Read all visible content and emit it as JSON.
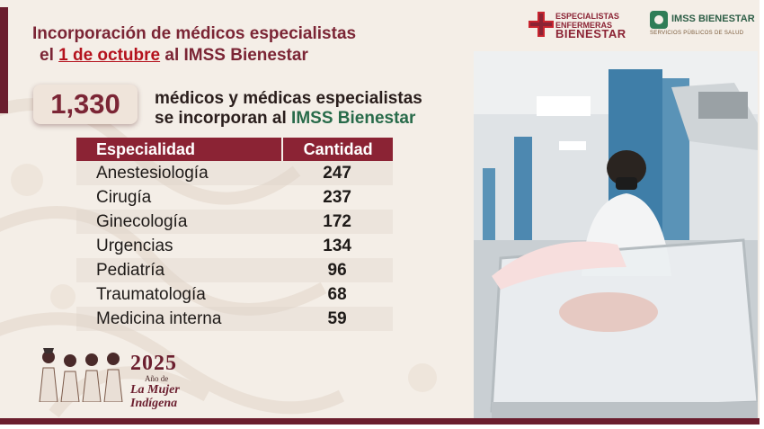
{
  "header": {
    "title_line1": "Incorporación de médicos especialistas",
    "title_line2_prefix": "el ",
    "title_line2_date": "1 de octubre",
    "title_line2_suffix": " al IMSS Bienestar"
  },
  "summary": {
    "count": "1,330",
    "text_line1": "médicos y médicas especialistas",
    "text_line2_prefix": "se incorporan al ",
    "text_line2_brand": "IMSS Bienestar"
  },
  "table": {
    "headers": [
      "Especialidad",
      "Cantidad"
    ],
    "rows": [
      {
        "specialty": "Anestesiología",
        "count": "247"
      },
      {
        "specialty": "Cirugía",
        "count": "237"
      },
      {
        "specialty": "Ginecología",
        "count": "172"
      },
      {
        "specialty": "Urgencias",
        "count": "134"
      },
      {
        "specialty": "Pediatría",
        "count": "96"
      },
      {
        "specialty": "Traumatología",
        "count": "68"
      },
      {
        "specialty": "Medicina interna",
        "count": "59"
      }
    ]
  },
  "logos": {
    "logo1_line1": "ESPECIALISTAS",
    "logo1_line2": "ENFERMERAS",
    "logo1_line3": "BIENESTAR",
    "logo2_name": "IMSS BIENESTAR",
    "logo2_sub": "SERVICIOS PÚBLICOS DE SALUD"
  },
  "footer": {
    "year": "2025",
    "year_sub": "Año de",
    "motto_line1": "La Mujer",
    "motto_line2": "Indígena"
  },
  "colors": {
    "burgundy": "#7b2535",
    "header_bg": "#8b2334",
    "green": "#286b4a",
    "background": "#f4eee7"
  }
}
